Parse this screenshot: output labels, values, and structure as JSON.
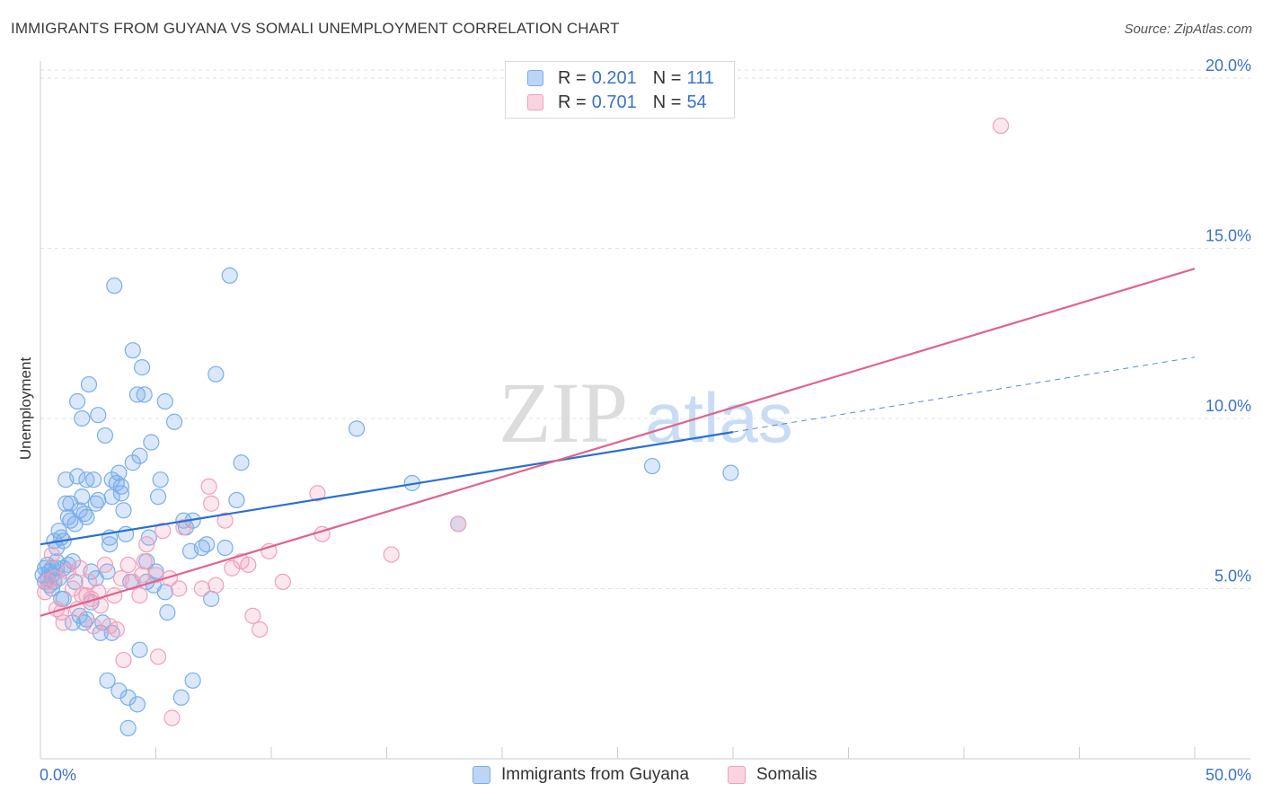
{
  "title": "IMMIGRANTS FROM GUYANA VS SOMALI UNEMPLOYMENT CORRELATION CHART",
  "source": "Source: ZipAtlas.com",
  "watermark": {
    "zip": "ZIP",
    "atlas": "atlas"
  },
  "colors": {
    "blue": "#7aaeea",
    "blue_line": "#2a6fd0",
    "pink": "#f1a0bb",
    "pink_line": "#e0638f",
    "tick_label": "#3a73c9"
  },
  "stats": [
    {
      "r_label": "R =",
      "r_value": "0.201",
      "n_label": "N =",
      "n_value": "111"
    },
    {
      "r_label": "R =",
      "r_value": "0.701",
      "n_label": "N =",
      "n_value": "54"
    }
  ],
  "chart_data": {
    "type": "scatter",
    "title": "IMMIGRANTS FROM GUYANA VS SOMALI UNEMPLOYMENT CORRELATION CHART",
    "xlabel": "",
    "ylabel": "Unemployment",
    "xlim": [
      0,
      50
    ],
    "ylim": [
      0,
      20.5
    ],
    "x_tick_labels": [
      "0.0%",
      "50.0%"
    ],
    "y_ticks": [
      5,
      10,
      15,
      20
    ],
    "y_tick_labels": [
      "5.0%",
      "10.0%",
      "15.0%",
      "20.0%"
    ],
    "grid": true,
    "legend": [
      "Immigrants from Guyana",
      "Somalis"
    ],
    "series": [
      {
        "name": "Immigrants from Guyana",
        "color": "#7aaeea",
        "trend": {
          "x0": 0,
          "y0": 6.3,
          "x1": 30,
          "y1": 9.6,
          "dashed_to_x": 50,
          "dashed_to_y": 11.8
        },
        "points": [
          [
            0.1,
            5.4
          ],
          [
            0.2,
            5.6
          ],
          [
            0.2,
            5.2
          ],
          [
            0.3,
            5.7
          ],
          [
            0.3,
            5.3
          ],
          [
            0.4,
            5.5
          ],
          [
            0.4,
            5.1
          ],
          [
            0.5,
            5.6
          ],
          [
            0.5,
            5.4
          ],
          [
            0.6,
            5.2
          ],
          [
            0.6,
            6.4
          ],
          [
            0.7,
            6.2
          ],
          [
            0.7,
            5.8
          ],
          [
            0.8,
            6.7
          ],
          [
            0.8,
            5.3
          ],
          [
            0.9,
            6.5
          ],
          [
            0.9,
            4.7
          ],
          [
            1.0,
            6.4
          ],
          [
            1.0,
            5.6
          ],
          [
            1.1,
            8.2
          ],
          [
            1.1,
            7.5
          ],
          [
            1.2,
            7.1
          ],
          [
            1.2,
            5.7
          ],
          [
            1.3,
            7.5
          ],
          [
            1.3,
            7.0
          ],
          [
            1.4,
            5.8
          ],
          [
            1.4,
            4.0
          ],
          [
            1.5,
            6.9
          ],
          [
            1.5,
            5.2
          ],
          [
            1.6,
            10.5
          ],
          [
            1.6,
            8.3
          ],
          [
            1.7,
            7.3
          ],
          [
            1.7,
            4.2
          ],
          [
            1.8,
            10.0
          ],
          [
            1.8,
            7.7
          ],
          [
            1.9,
            4.0
          ],
          [
            1.9,
            7.2
          ],
          [
            2.0,
            8.2
          ],
          [
            2.0,
            4.1
          ],
          [
            2.0,
            7.1
          ],
          [
            2.1,
            11.0
          ],
          [
            2.2,
            5.5
          ],
          [
            2.2,
            4.6
          ],
          [
            2.3,
            8.2
          ],
          [
            2.4,
            5.3
          ],
          [
            2.4,
            7.5
          ],
          [
            2.5,
            10.1
          ],
          [
            2.5,
            7.6
          ],
          [
            2.6,
            3.7
          ],
          [
            2.7,
            4.0
          ],
          [
            2.8,
            9.5
          ],
          [
            2.9,
            2.3
          ],
          [
            3.0,
            6.3
          ],
          [
            3.0,
            6.5
          ],
          [
            3.1,
            8.2
          ],
          [
            3.1,
            7.7
          ],
          [
            3.1,
            3.7
          ],
          [
            3.2,
            13.9
          ],
          [
            3.3,
            8.1
          ],
          [
            3.4,
            2.0
          ],
          [
            3.4,
            8.4
          ],
          [
            3.5,
            8.0
          ],
          [
            3.5,
            7.8
          ],
          [
            3.6,
            7.3
          ],
          [
            3.7,
            6.6
          ],
          [
            3.8,
            1.8
          ],
          [
            3.8,
            0.9
          ],
          [
            3.9,
            5.2
          ],
          [
            4.0,
            8.7
          ],
          [
            4.0,
            12.0
          ],
          [
            4.2,
            10.7
          ],
          [
            4.2,
            1.6
          ],
          [
            4.3,
            8.9
          ],
          [
            4.3,
            3.2
          ],
          [
            4.4,
            11.5
          ],
          [
            4.5,
            10.7
          ],
          [
            4.6,
            5.2
          ],
          [
            4.6,
            5.8
          ],
          [
            4.7,
            6.5
          ],
          [
            4.8,
            9.3
          ],
          [
            5.0,
            5.5
          ],
          [
            5.1,
            7.7
          ],
          [
            5.2,
            8.2
          ],
          [
            5.4,
            4.9
          ],
          [
            5.4,
            10.5
          ],
          [
            5.5,
            4.3
          ],
          [
            5.8,
            9.9
          ],
          [
            6.1,
            1.8
          ],
          [
            6.2,
            7.0
          ],
          [
            6.3,
            6.8
          ],
          [
            6.5,
            6.1
          ],
          [
            6.6,
            2.3
          ],
          [
            7.0,
            6.2
          ],
          [
            7.2,
            6.3
          ],
          [
            7.4,
            4.7
          ],
          [
            7.6,
            11.3
          ],
          [
            8.0,
            6.2
          ],
          [
            8.2,
            14.2
          ],
          [
            8.5,
            7.6
          ],
          [
            8.7,
            8.7
          ],
          [
            13.7,
            9.7
          ],
          [
            16.1,
            8.1
          ],
          [
            26.5,
            8.6
          ],
          [
            29.9,
            8.4
          ],
          [
            18.1,
            6.9
          ],
          [
            2.9,
            5.5
          ],
          [
            4.9,
            5.1
          ],
          [
            1.0,
            4.7
          ],
          [
            0.7,
            5.6
          ],
          [
            6.6,
            7.0
          ],
          [
            0.5,
            5.0
          ]
        ]
      },
      {
        "name": "Somalis",
        "color": "#f1a0bb",
        "trend": {
          "x0": 0,
          "y0": 4.2,
          "x1": 50,
          "y1": 14.4
        },
        "points": [
          [
            0.2,
            4.9
          ],
          [
            0.3,
            5.2
          ],
          [
            0.5,
            6.0
          ],
          [
            0.6,
            5.3
          ],
          [
            0.7,
            4.4
          ],
          [
            0.9,
            4.3
          ],
          [
            1.0,
            4.0
          ],
          [
            1.2,
            5.5
          ],
          [
            1.4,
            5.0
          ],
          [
            1.6,
            4.4
          ],
          [
            1.7,
            5.6
          ],
          [
            1.8,
            4.8
          ],
          [
            2.0,
            4.8
          ],
          [
            2.1,
            5.2
          ],
          [
            2.2,
            4.7
          ],
          [
            2.3,
            3.9
          ],
          [
            2.5,
            4.9
          ],
          [
            2.6,
            4.5
          ],
          [
            2.8,
            5.7
          ],
          [
            3.0,
            3.9
          ],
          [
            3.2,
            4.8
          ],
          [
            3.3,
            3.8
          ],
          [
            3.5,
            5.3
          ],
          [
            3.6,
            2.9
          ],
          [
            3.8,
            5.7
          ],
          [
            4.0,
            5.2
          ],
          [
            4.3,
            4.8
          ],
          [
            4.4,
            5.4
          ],
          [
            4.5,
            5.8
          ],
          [
            4.6,
            6.3
          ],
          [
            5.0,
            5.4
          ],
          [
            5.1,
            3.0
          ],
          [
            5.3,
            6.7
          ],
          [
            5.6,
            5.3
          ],
          [
            5.7,
            1.2
          ],
          [
            6.0,
            5.0
          ],
          [
            6.2,
            6.8
          ],
          [
            7.0,
            5.0
          ],
          [
            7.3,
            8.0
          ],
          [
            7.4,
            7.5
          ],
          [
            7.6,
            5.1
          ],
          [
            8.0,
            7.0
          ],
          [
            8.3,
            5.6
          ],
          [
            8.7,
            5.8
          ],
          [
            9.0,
            5.7
          ],
          [
            9.2,
            4.2
          ],
          [
            9.5,
            3.8
          ],
          [
            9.9,
            6.1
          ],
          [
            10.5,
            5.2
          ],
          [
            12.0,
            7.8
          ],
          [
            12.2,
            6.6
          ],
          [
            15.2,
            6.0
          ],
          [
            18.1,
            6.9
          ],
          [
            41.6,
            18.6
          ]
        ]
      }
    ]
  },
  "legend_bottom": [
    {
      "label": "Immigrants from Guyana"
    },
    {
      "label": "Somalis"
    }
  ]
}
